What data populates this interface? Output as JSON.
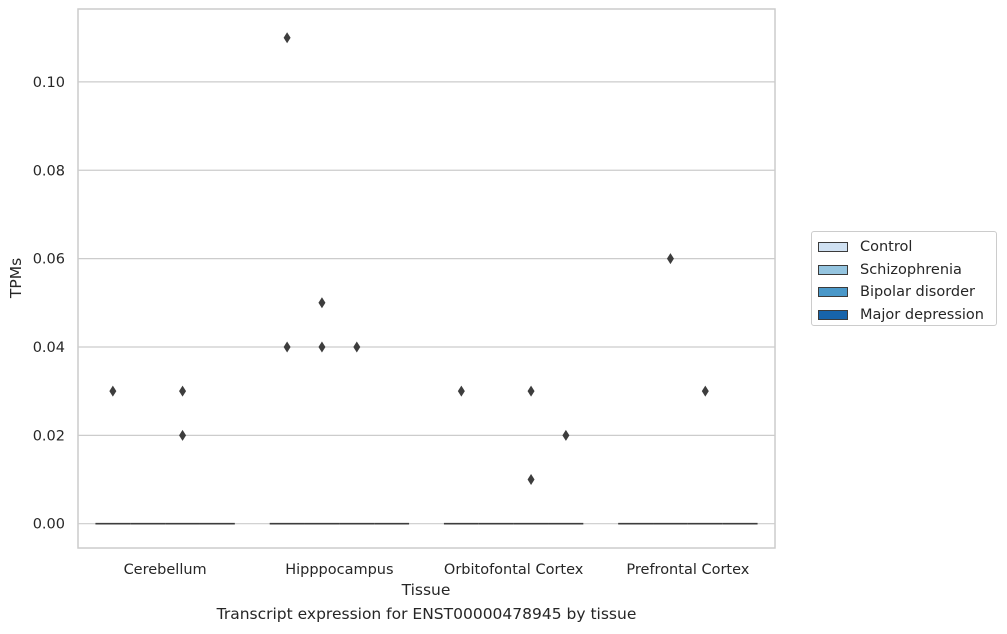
{
  "chart_data": {
    "type": "boxplot",
    "xlabel": "Tissue",
    "ylabel": "TPMs",
    "caption": "Transcript expression for ENST00000478945 by tissue",
    "categories": [
      "Cerebellum",
      "Hipppocampus",
      "Orbitofontal Cortex",
      "Prefrontal Cortex"
    ],
    "ylim": [
      -0.0055,
      0.1165
    ],
    "yticks": [
      0.0,
      0.02,
      0.04,
      0.06,
      0.08,
      0.1
    ],
    "ytick_labels": [
      "0.00",
      "0.02",
      "0.04",
      "0.06",
      "0.08",
      "0.10"
    ],
    "grid": true,
    "legend_position": "right",
    "series": [
      {
        "name": "Control",
        "color": "#d0e1f2",
        "medians": [
          0,
          0,
          0,
          0
        ],
        "outliers": [
          [
            0.03
          ],
          [
            0.11,
            0.04
          ],
          [
            0.03
          ],
          []
        ]
      },
      {
        "name": "Schizophrenia",
        "color": "#94c4df",
        "medians": [
          0,
          0,
          0,
          0
        ],
        "outliers": [
          [],
          [
            0.05,
            0.04
          ],
          [],
          [
            0.06
          ]
        ]
      },
      {
        "name": "Bipolar disorder",
        "color": "#4a98c9",
        "medians": [
          0,
          0,
          0,
          0
        ],
        "outliers": [
          [
            0.03,
            0.02
          ],
          [
            0.04
          ],
          [
            0.03,
            0.01
          ],
          [
            0.03
          ]
        ]
      },
      {
        "name": "Major depression",
        "color": "#1764ab",
        "medians": [
          0,
          0,
          0,
          0
        ],
        "outliers": [
          [],
          [],
          [
            0.02
          ],
          []
        ]
      }
    ]
  }
}
